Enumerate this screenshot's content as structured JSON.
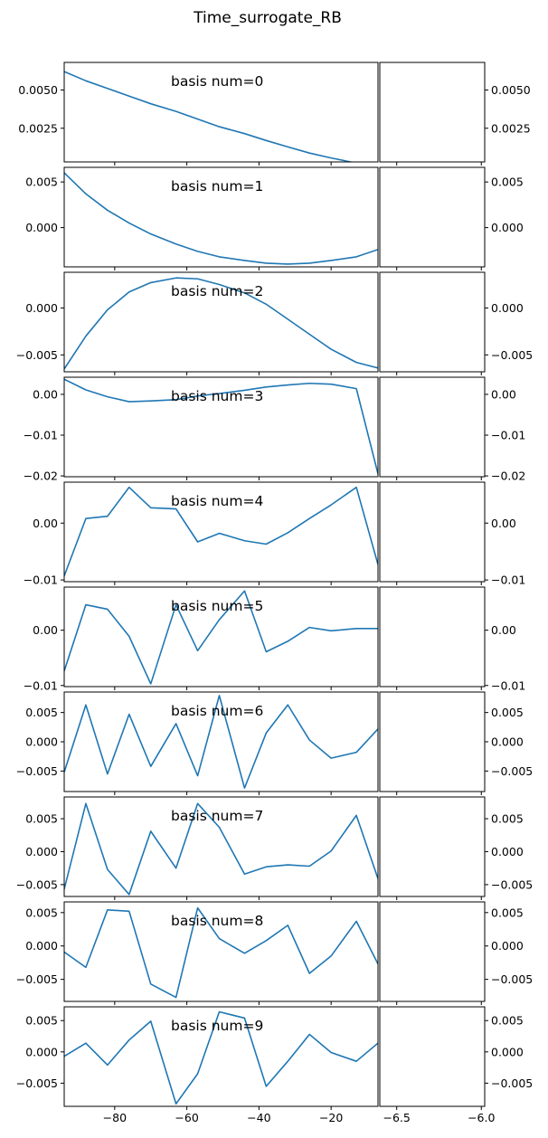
{
  "title": "Time_surrogate_RB",
  "chart_data": {
    "type": "line",
    "title": "Time_surrogate_RB",
    "series_color": "#1f77b4",
    "x": [
      -94,
      -88,
      -82,
      -76,
      -70,
      -63,
      -57,
      -51,
      -44,
      -38,
      -32,
      -26,
      -20,
      -13,
      -7
    ],
    "xlim": [
      -94,
      -7
    ],
    "x_ticks": [
      -80,
      -60,
      -40,
      -20
    ],
    "x_tick_labels": [
      "−80",
      "−60",
      "−40",
      "−20"
    ],
    "right_xlim": [
      -6.6,
      -5.98
    ],
    "right_x_ticks": [
      -6.5,
      -6.0
    ],
    "right_x_tick_labels": [
      "−6.5",
      "−6.0"
    ],
    "panels": [
      {
        "label": "basis num=0",
        "ylim": [
          0.0003,
          0.0068
        ],
        "y_ticks": [
          0.0025,
          0.005
        ],
        "y_tick_labels": [
          "0.0025",
          "0.0050"
        ],
        "y": [
          0.0062,
          0.0056,
          0.0051,
          0.0046,
          0.0041,
          0.0036,
          0.0031,
          0.0026,
          0.00215,
          0.0017,
          0.00128,
          0.00088,
          0.00056,
          0.00022,
          3e-05
        ]
      },
      {
        "label": "basis num=1",
        "ylim": [
          -0.0043,
          0.0066
        ],
        "y_ticks": [
          0.0,
          0.005
        ],
        "y_tick_labels": [
          "0.000",
          "0.005"
        ],
        "y": [
          0.006,
          0.0037,
          0.0019,
          0.0005,
          -0.0007,
          -0.0018,
          -0.0026,
          -0.0032,
          -0.0036,
          -0.0039,
          -0.004,
          -0.0039,
          -0.0036,
          -0.0032,
          -0.0024
        ]
      },
      {
        "label": "basis num=2",
        "ylim": [
          -0.0068,
          0.0038
        ],
        "y_ticks": [
          -0.005,
          0.0
        ],
        "y_tick_labels": [
          "−0.005",
          "0.000"
        ],
        "y": [
          -0.0065,
          -0.003,
          -0.0002,
          0.0017,
          0.0027,
          0.0032,
          0.0031,
          0.0025,
          0.0016,
          0.0004,
          -0.0012,
          -0.0028,
          -0.0044,
          -0.0058,
          -0.0064
        ]
      },
      {
        "label": "basis num=3",
        "ylim": [
          -0.0202,
          0.0042
        ],
        "y_ticks": [
          -0.02,
          -0.01,
          0.0
        ],
        "y_tick_labels": [
          "−0.02",
          "−0.01",
          "0.00"
        ],
        "y": [
          0.0037,
          0.0011,
          -0.0006,
          -0.0018,
          -0.0016,
          -0.0013,
          -0.0004,
          0.0002,
          0.001,
          0.0018,
          0.0023,
          0.0027,
          0.0025,
          0.0014,
          -0.0195
        ]
      },
      {
        "label": "basis num=4",
        "ylim": [
          -0.0103,
          0.0072
        ],
        "y_ticks": [
          -0.01,
          0.0
        ],
        "y_tick_labels": [
          "−0.01",
          "0.00"
        ],
        "y": [
          -0.0093,
          0.0008,
          0.0012,
          0.0063,
          0.0027,
          0.0025,
          -0.0033,
          -0.0018,
          -0.0031,
          -0.0037,
          -0.0017,
          0.0008,
          0.0032,
          0.0063,
          -0.0073
        ]
      },
      {
        "label": "basis num=5",
        "ylim": [
          -0.0102,
          0.0078
        ],
        "y_ticks": [
          -0.01,
          0.0
        ],
        "y_tick_labels": [
          "−0.01",
          "0.00"
        ],
        "y": [
          -0.0074,
          0.0046,
          0.0038,
          -0.0011,
          -0.0097,
          0.0046,
          -0.0037,
          0.0019,
          0.0071,
          -0.0039,
          -0.002,
          0.0005,
          -0.0001,
          0.0003,
          0.0003
        ]
      },
      {
        "label": "basis num=6",
        "ylim": [
          -0.0085,
          0.0085
        ],
        "y_ticks": [
          -0.005,
          0.0,
          0.005
        ],
        "y_tick_labels": [
          "−0.005",
          "0.000",
          "0.005"
        ],
        "y": [
          -0.0052,
          0.0063,
          -0.0055,
          0.0047,
          -0.0042,
          0.0031,
          -0.0058,
          0.0079,
          -0.0079,
          0.0015,
          0.0063,
          0.0003,
          -0.0028,
          -0.0018,
          0.0022
        ]
      },
      {
        "label": "basis num=7",
        "ylim": [
          -0.0068,
          0.0083
        ],
        "y_ticks": [
          -0.005,
          0.0,
          0.005
        ],
        "y_tick_labels": [
          "−0.005",
          "0.000",
          "0.005"
        ],
        "y": [
          -0.0057,
          0.0073,
          -0.0027,
          -0.0065,
          0.0031,
          -0.0025,
          0.0073,
          0.0037,
          -0.0034,
          -0.0023,
          -0.002,
          -0.0022,
          0.0001,
          0.0055,
          -0.0041
        ]
      },
      {
        "label": "basis num=8",
        "ylim": [
          -0.0083,
          0.0066
        ],
        "y_ticks": [
          -0.005,
          0.0,
          0.005
        ],
        "y_tick_labels": [
          "−0.005",
          "0.000",
          "0.005"
        ],
        "y": [
          -0.0009,
          -0.0032,
          0.0054,
          0.0052,
          -0.0057,
          -0.0077,
          0.0057,
          0.0011,
          -0.0011,
          0.0008,
          0.0031,
          -0.0041,
          -0.0015,
          0.0037,
          -0.0027
        ]
      },
      {
        "label": "basis num=9",
        "ylim": [
          -0.0087,
          0.0072
        ],
        "y_ticks": [
          -0.005,
          0.0,
          0.005
        ],
        "y_tick_labels": [
          "−0.005",
          "0.000",
          "0.005"
        ],
        "y": [
          -0.0007,
          0.0014,
          -0.0021,
          0.0019,
          0.0049,
          -0.0083,
          -0.0035,
          0.0064,
          0.0054,
          -0.0055,
          -0.0015,
          0.0028,
          -0.0001,
          -0.0015,
          0.0014
        ]
      }
    ]
  }
}
